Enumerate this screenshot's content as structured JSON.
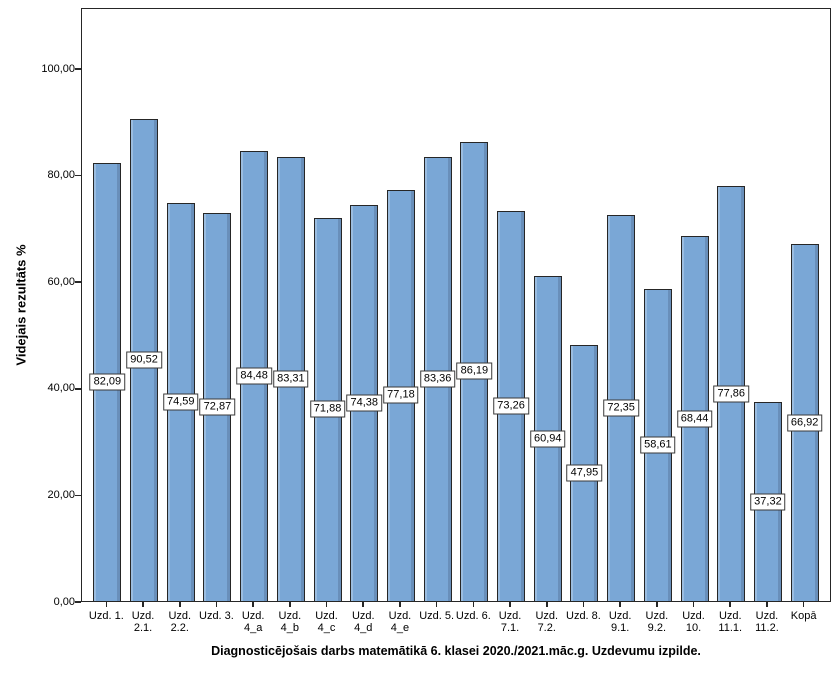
{
  "chart_data": {
    "type": "bar",
    "title": "",
    "xlabel": "Diagnosticējošais darbs matemātikā 6. klasei 2020./2021.māc.g. Uzdevumu izpilde.",
    "ylabel": "Videjais rezultāts %",
    "categories": [
      "Uzd. 1.",
      "Uzd. 2.1.",
      "Uzd. 2.2.",
      "Uzd. 3.",
      "Uzd. 4_a",
      "Uzd. 4_b",
      "Uzd. 4_c",
      "Uzd. 4_d",
      "Uzd. 4_e",
      "Uzd. 5.",
      "Uzd. 6.",
      "Uzd. 7.1.",
      "Uzd. 7.2.",
      "Uzd. 8.",
      "Uzd. 9.1.",
      "Uzd. 9.2.",
      "Uzd. 10.",
      "Uzd. 11.1.",
      "Uzd. 11.2.",
      "Kopā"
    ],
    "category_label_lines": [
      [
        "Uzd. 1."
      ],
      [
        "Uzd.",
        "2.1."
      ],
      [
        "Uzd.",
        "2.2."
      ],
      [
        "Uzd. 3."
      ],
      [
        "Uzd.",
        "4_a"
      ],
      [
        "Uzd.",
        "4_b"
      ],
      [
        "Uzd.",
        "4_c"
      ],
      [
        "Uzd.",
        "4_d"
      ],
      [
        "Uzd.",
        "4_e"
      ],
      [
        "Uzd. 5."
      ],
      [
        "Uzd. 6."
      ],
      [
        "Uzd.",
        "7.1."
      ],
      [
        "Uzd.",
        "7.2."
      ],
      [
        "Uzd. 8."
      ],
      [
        "Uzd.",
        "9.1."
      ],
      [
        "Uzd.",
        "9.2."
      ],
      [
        "Uzd.",
        "10."
      ],
      [
        "Uzd.",
        "11.1."
      ],
      [
        "Uzd.",
        "11.2."
      ],
      [
        "Kopā"
      ]
    ],
    "values": [
      82.09,
      90.52,
      74.59,
      72.87,
      84.48,
      83.31,
      71.88,
      74.38,
      77.18,
      83.36,
      86.19,
      73.26,
      60.94,
      47.95,
      72.35,
      58.61,
      68.44,
      77.86,
      37.32,
      66.92
    ],
    "value_labels": [
      "82,09",
      "90,52",
      "74,59",
      "72,87",
      "84,48",
      "83,31",
      "71,88",
      "74,38",
      "77,18",
      "83,36",
      "86,19",
      "73,26",
      "60,94",
      "47,95",
      "72,35",
      "58,61",
      "68,44",
      "77,86",
      "37,32",
      "66,92"
    ],
    "yticks": [
      0,
      20,
      40,
      60,
      80,
      100
    ],
    "ytick_labels": [
      "0,00",
      "20,00",
      "40,00",
      "60,00",
      "80,00",
      "100,00"
    ],
    "ylim": [
      0,
      100
    ],
    "axis_top_value": 111.4,
    "grid": false,
    "legend": "none",
    "colors": {
      "bar_fill": "#7AA7D6",
      "bar_border": "#262626",
      "frame_border": "#262626",
      "label_box_bg": "#ffffff",
      "label_box_border": "#3a3a3a",
      "background": "#ffffff",
      "text": "#000000"
    }
  }
}
